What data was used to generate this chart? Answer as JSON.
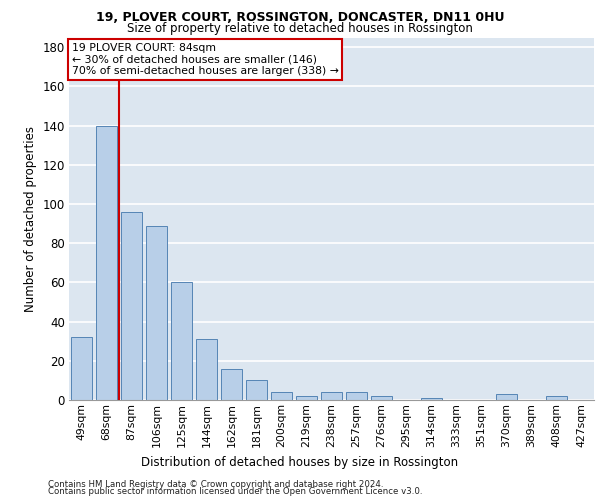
{
  "title1": "19, PLOVER COURT, ROSSINGTON, DONCASTER, DN11 0HU",
  "title2": "Size of property relative to detached houses in Rossington",
  "xlabel": "Distribution of detached houses by size in Rossington",
  "ylabel": "Number of detached properties",
  "footer1": "Contains HM Land Registry data © Crown copyright and database right 2024.",
  "footer2": "Contains public sector information licensed under the Open Government Licence v3.0.",
  "property_label": "19 PLOVER COURT: 84sqm",
  "annotation_line1": "← 30% of detached houses are smaller (146)",
  "annotation_line2": "70% of semi-detached houses are larger (338) →",
  "bar_categories": [
    "49sqm",
    "68sqm",
    "87sqm",
    "106sqm",
    "125sqm",
    "144sqm",
    "162sqm",
    "181sqm",
    "200sqm",
    "219sqm",
    "238sqm",
    "257sqm",
    "276sqm",
    "295sqm",
    "314sqm",
    "333sqm",
    "351sqm",
    "370sqm",
    "389sqm",
    "408sqm",
    "427sqm"
  ],
  "bar_values": [
    32,
    140,
    96,
    89,
    60,
    31,
    16,
    10,
    4,
    2,
    4,
    4,
    2,
    0,
    1,
    0,
    0,
    3,
    0,
    2,
    0
  ],
  "bar_color": "#b8cfe8",
  "bar_edgecolor": "#5585b5",
  "vline_x": 1.5,
  "vline_color": "#cc0000",
  "box_color": "#cc0000",
  "ylim": [
    0,
    185
  ],
  "yticks": [
    0,
    20,
    40,
    60,
    80,
    100,
    120,
    140,
    160,
    180
  ],
  "bg_color": "#dce6f0",
  "grid_color": "#ffffff"
}
